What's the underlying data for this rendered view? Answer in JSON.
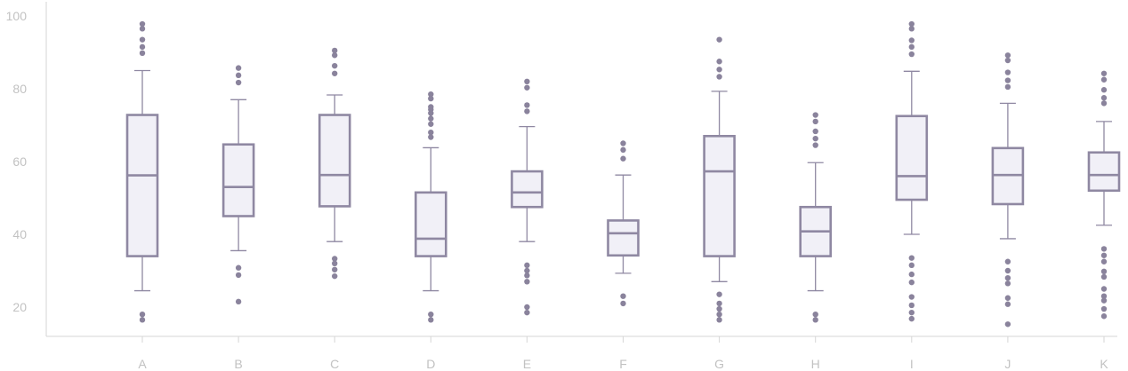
{
  "chart_data": {
    "type": "box",
    "title": "",
    "xlabel": "",
    "ylabel": "",
    "ylim": [
      12,
      102
    ],
    "yticks": [
      20,
      40,
      60,
      80,
      100
    ],
    "grid": false,
    "legend": "none",
    "colors": {
      "box_fill": "#f1f0f7",
      "box_stroke": "#8f88a2",
      "outlier": "#8a839c",
      "axis": "#d6d6d6",
      "tick_text": "#c2c2c2"
    },
    "categories": [
      "A",
      "B",
      "C",
      "D",
      "E",
      "F",
      "G",
      "H",
      "I",
      "J",
      "K"
    ],
    "boxes": [
      {
        "label": "A",
        "whisker_low": 24.5,
        "q1": 34,
        "median": 56.2,
        "q3": 72.8,
        "whisker_high": 85,
        "outliers": [
          16.5,
          18,
          89.8,
          91.5,
          93.5,
          96.5,
          97.8
        ]
      },
      {
        "label": "B",
        "whisker_low": 35.5,
        "q1": 45,
        "median": 53,
        "q3": 64.7,
        "whisker_high": 77,
        "outliers": [
          21.5,
          28.8,
          30.8,
          81.7,
          83.7,
          85.7
        ]
      },
      {
        "label": "C",
        "whisker_low": 38,
        "q1": 47.7,
        "median": 56.3,
        "q3": 72.8,
        "whisker_high": 78.3,
        "outliers": [
          28.5,
          30.3,
          32,
          33.3,
          84.2,
          86.3,
          89.2,
          90.5
        ]
      },
      {
        "label": "D",
        "whisker_low": 24.5,
        "q1": 34,
        "median": 38.8,
        "q3": 51.5,
        "whisker_high": 63.8,
        "outliers": [
          16.5,
          18,
          66.7,
          68,
          70.3,
          71.8,
          73.3,
          74.3,
          75,
          77.3,
          78.5
        ]
      },
      {
        "label": "E",
        "whisker_low": 38,
        "q1": 47.5,
        "median": 51.5,
        "q3": 57.3,
        "whisker_high": 69.6,
        "outliers": [
          18.5,
          20,
          27,
          28.7,
          30,
          31.5,
          73.8,
          75.5,
          80.3,
          82
        ]
      },
      {
        "label": "F",
        "whisker_low": 29.3,
        "q1": 34.2,
        "median": 40.3,
        "q3": 43.8,
        "whisker_high": 56.3,
        "outliers": [
          21,
          23,
          60.8,
          63.2,
          65
        ]
      },
      {
        "label": "G",
        "whisker_low": 27,
        "q1": 34,
        "median": 57.3,
        "q3": 67,
        "whisker_high": 79.3,
        "outliers": [
          16.5,
          18,
          19.5,
          21,
          23.5,
          83.3,
          85.3,
          87.5,
          93.5
        ]
      },
      {
        "label": "H",
        "whisker_low": 24.5,
        "q1": 34,
        "median": 40.8,
        "q3": 47.5,
        "whisker_high": 59.7,
        "outliers": [
          16.5,
          18,
          64.5,
          66.3,
          68.3,
          71,
          72.8
        ]
      },
      {
        "label": "I",
        "whisker_low": 40,
        "q1": 49.5,
        "median": 56,
        "q3": 72.5,
        "whisker_high": 84.8,
        "outliers": [
          16.8,
          18.5,
          20.5,
          22.8,
          26.8,
          29,
          31.5,
          33.5,
          89.5,
          91.5,
          93.3,
          96.5,
          97.8
        ]
      },
      {
        "label": "J",
        "whisker_low": 38.8,
        "q1": 48.3,
        "median": 56.3,
        "q3": 63.7,
        "whisker_high": 76,
        "outliers": [
          15.3,
          20.8,
          22.5,
          26.5,
          28,
          30,
          32.5,
          80.5,
          82.3,
          84.5,
          87.8,
          89.2
        ]
      },
      {
        "label": "K",
        "whisker_low": 42.5,
        "q1": 52,
        "median": 56.3,
        "q3": 62.5,
        "whisker_high": 71,
        "outliers": [
          17.5,
          19.5,
          21.8,
          23,
          25,
          28.3,
          29.8,
          32.5,
          34.2,
          36,
          76,
          77.5,
          79.7,
          82.5,
          84.2
        ]
      }
    ]
  }
}
